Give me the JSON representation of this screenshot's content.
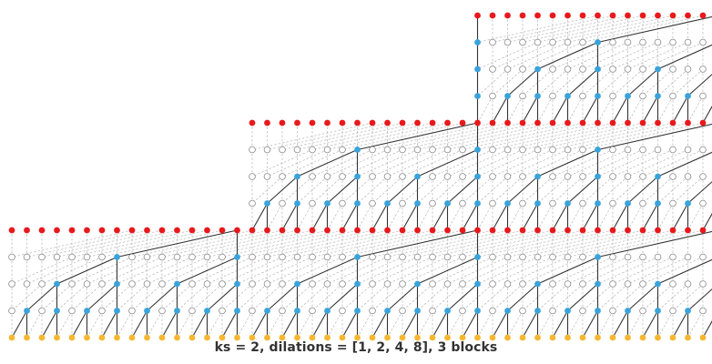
{
  "caption": "ks = 2, dilations = [1, 2, 4, 8], 3 blocks",
  "network": {
    "kernel_size": 2,
    "dilations": [
      1,
      2,
      4,
      8
    ],
    "blocks": 3,
    "inputs_per_block_start": [
      0,
      16,
      31
    ],
    "sequence_length": 48
  },
  "colors": {
    "input_node": "#f5b731",
    "output_node": "#e8191c",
    "active_node": "#3aa3db",
    "inactive_node": "#ffffff",
    "node_stroke": "#888888",
    "active_edge": "#333333",
    "inactive_edge": "#aaaaaa"
  }
}
